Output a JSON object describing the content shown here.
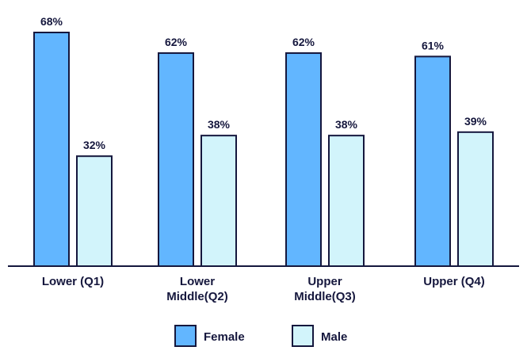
{
  "chart_data": {
    "type": "bar",
    "categories": [
      [
        "Lower (Q1)"
      ],
      [
        "Lower",
        "Middle(Q2)"
      ],
      [
        "Upper",
        "Middle(Q3)"
      ],
      [
        "Upper (Q4)"
      ]
    ],
    "series": [
      {
        "name": "Female",
        "values": [
          68,
          62,
          62,
          61
        ],
        "labels": [
          "68%",
          "62%",
          "62%",
          "61%"
        ],
        "color": "#62b6ff"
      },
      {
        "name": "Male",
        "values": [
          32,
          38,
          38,
          39
        ],
        "labels": [
          "32%",
          "38%",
          "38%",
          "39%"
        ],
        "color": "#d2f4fb"
      }
    ],
    "ylim": [
      0,
      68
    ],
    "grid": false,
    "legend_position": "bottom",
    "edge_color": "#15173d"
  }
}
